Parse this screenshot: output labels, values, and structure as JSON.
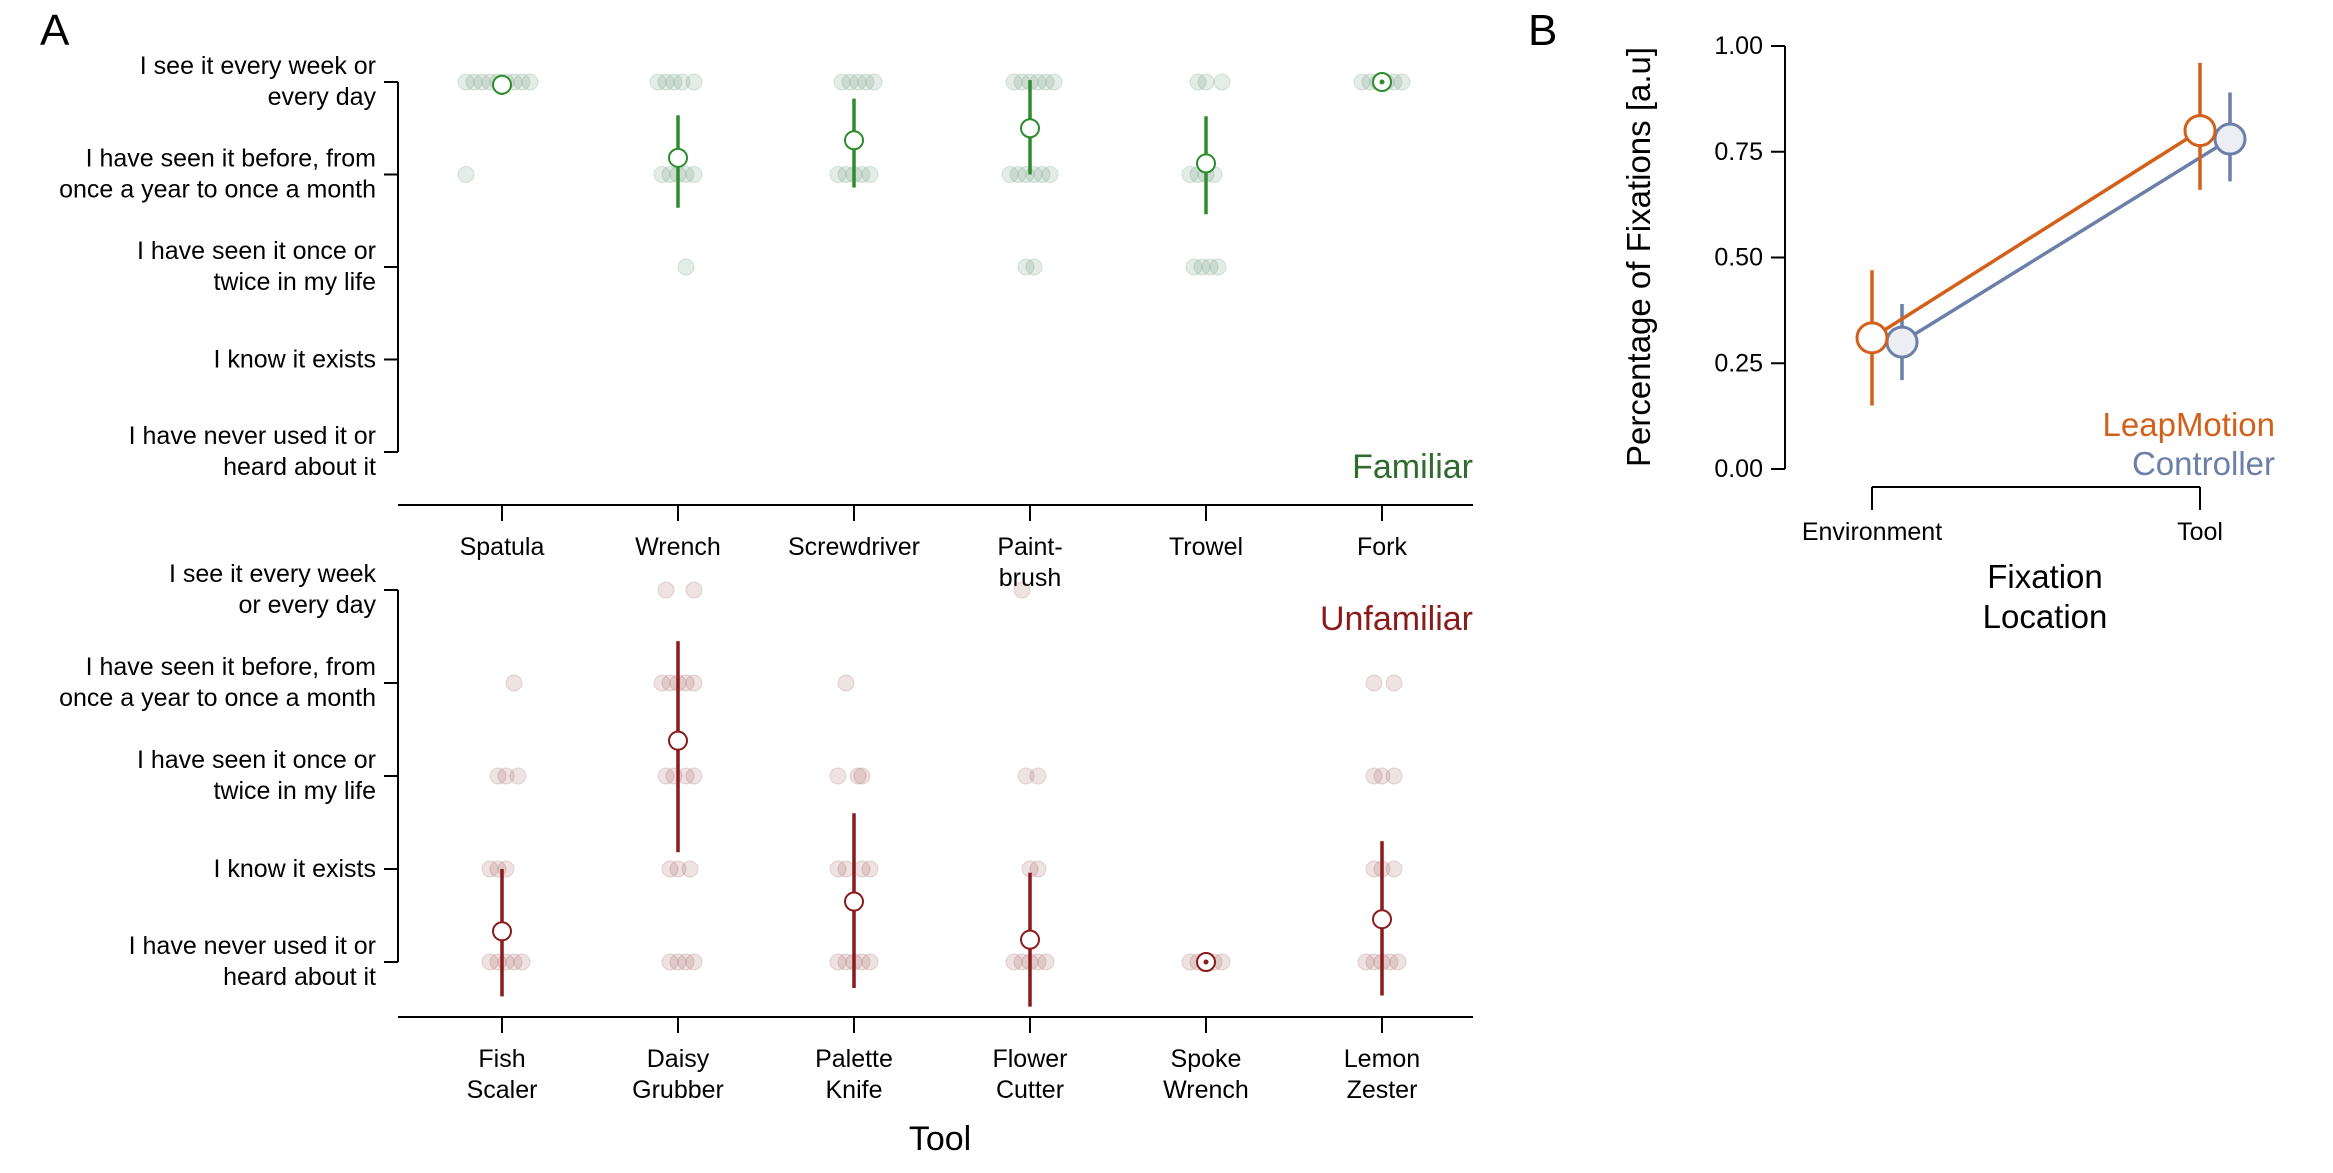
{
  "panel_letters": {
    "a": "A",
    "b": "B"
  },
  "colors": {
    "familiar": "#2e8b2e",
    "familiar_dot": "#3f7a52",
    "familiar_label": "#2f6b2f",
    "unfamiliar": "#8b1a1a",
    "unfamiliar_dot": "#8a3535",
    "leapmotion": "#d2601a",
    "controller": "#6b7fa8",
    "axis": "#000000"
  },
  "chart_data": [
    {
      "id": "familiar",
      "type": "scatter",
      "panel": "A",
      "corner_label": "Familiar",
      "xlabel": "",
      "categories": [
        "Spatula",
        "Wrench",
        "Screwdriver",
        "Paint-\nbrush",
        "Trowel",
        "Fork"
      ],
      "y_levels": [
        "I see it every week or\nevery day",
        "I have seen it before, from\nonce a year to once a month",
        "I have seen it once or\ntwice in my life",
        "I know it exists",
        "I have  never used it or\nheard about it"
      ],
      "ylim": [
        1,
        5
      ],
      "means": [
        4.97,
        4.18,
        4.37,
        4.5,
        4.12,
        5.0
      ],
      "error_low": [
        4.86,
        3.64,
        3.86,
        4.0,
        3.57,
        5.0
      ],
      "error_high": [
        5.05,
        4.64,
        4.82,
        5.02,
        4.63,
        5.0
      ],
      "points": [
        [
          [
            5,
            -0.45
          ],
          [
            5,
            -0.35
          ],
          [
            5,
            -0.25
          ],
          [
            5,
            -0.15
          ],
          [
            5,
            -0.05
          ],
          [
            5,
            0.05
          ],
          [
            5,
            0.15
          ],
          [
            5,
            0.25
          ],
          [
            5,
            0.35
          ],
          [
            4,
            -0.45
          ]
        ],
        [
          [
            5,
            -0.25
          ],
          [
            5,
            -0.15
          ],
          [
            5,
            -0.05
          ],
          [
            5,
            0.05
          ],
          [
            5,
            0.2
          ],
          [
            4,
            -0.2
          ],
          [
            4,
            -0.1
          ],
          [
            4,
            0.0
          ],
          [
            4,
            0.1
          ],
          [
            4,
            0.2
          ],
          [
            3,
            0.1
          ]
        ],
        [
          [
            5,
            -0.15
          ],
          [
            5,
            -0.05
          ],
          [
            5,
            0.05
          ],
          [
            5,
            0.15
          ],
          [
            5,
            0.25
          ],
          [
            4,
            -0.2
          ],
          [
            4,
            -0.1
          ],
          [
            4,
            0.0
          ],
          [
            4,
            0.1
          ],
          [
            4,
            0.2
          ]
        ],
        [
          [
            5,
            -0.2
          ],
          [
            5,
            -0.1
          ],
          [
            5,
            0.0
          ],
          [
            5,
            0.1
          ],
          [
            5,
            0.2
          ],
          [
            5,
            0.3
          ],
          [
            4,
            -0.25
          ],
          [
            4,
            -0.15
          ],
          [
            4,
            -0.05
          ],
          [
            4,
            0.05
          ],
          [
            4,
            0.15
          ],
          [
            4,
            0.25
          ],
          [
            3,
            -0.05
          ],
          [
            3,
            0.05
          ]
        ],
        [
          [
            5,
            -0.1
          ],
          [
            5,
            0.0
          ],
          [
            5,
            0.2
          ],
          [
            4,
            -0.2
          ],
          [
            4,
            -0.1
          ],
          [
            4,
            0.0
          ],
          [
            4,
            0.1
          ],
          [
            3,
            -0.15
          ],
          [
            3,
            -0.05
          ],
          [
            3,
            0.05
          ],
          [
            3,
            0.15
          ]
        ],
        [
          [
            5,
            -0.25
          ],
          [
            5,
            -0.15
          ],
          [
            5,
            -0.05
          ],
          [
            5,
            0.05
          ],
          [
            5,
            0.15
          ],
          [
            5,
            0.25
          ]
        ]
      ]
    },
    {
      "id": "unfamiliar",
      "type": "scatter",
      "panel": "A",
      "corner_label": "Unfamiliar",
      "xlabel": "Tool",
      "categories": [
        "Fish\nScaler",
        "Daisy\nGrubber",
        "Palette\nKnife",
        "Flower\nCutter",
        "Spoke\nWrench",
        "Lemon\nZester"
      ],
      "y_levels": [
        "I see it every week\nor every day",
        "I have seen it before, from\nonce a year to once a month",
        "I have seen it once or\ntwice in my life",
        "I know it exists",
        "I have  never used it or\nheard about it"
      ],
      "ylim": [
        1,
        5
      ],
      "means": [
        1.33,
        3.38,
        1.65,
        1.24,
        1.0,
        1.46
      ],
      "error_low": [
        0.63,
        2.18,
        0.72,
        0.52,
        1.0,
        0.64
      ],
      "error_high": [
        2.0,
        4.45,
        2.6,
        1.96,
        1.0,
        2.3
      ],
      "points": [
        [
          [
            4,
            0.15
          ],
          [
            3,
            -0.05
          ],
          [
            3,
            0.05
          ],
          [
            3,
            0.2
          ],
          [
            2,
            -0.15
          ],
          [
            2,
            -0.05
          ],
          [
            2,
            0.05
          ],
          [
            1,
            -0.15
          ],
          [
            1,
            -0.05
          ],
          [
            1,
            0.05
          ],
          [
            1,
            0.15
          ],
          [
            1,
            0.25
          ]
        ],
        [
          [
            5,
            -0.15
          ],
          [
            5,
            0.2
          ],
          [
            4,
            -0.2
          ],
          [
            4,
            -0.1
          ],
          [
            4,
            0.0
          ],
          [
            4,
            0.1
          ],
          [
            4,
            0.2
          ],
          [
            3,
            -0.15
          ],
          [
            3,
            -0.05
          ],
          [
            3,
            0.1
          ],
          [
            3,
            0.2
          ],
          [
            2,
            -0.1
          ],
          [
            2,
            0.0
          ],
          [
            2,
            0.15
          ],
          [
            1,
            -0.1
          ],
          [
            1,
            0.0
          ],
          [
            1,
            0.1
          ],
          [
            1,
            0.2
          ]
        ],
        [
          [
            4,
            -0.1
          ],
          [
            3,
            -0.2
          ],
          [
            3,
            0.05
          ],
          [
            3,
            0.1
          ],
          [
            2,
            -0.2
          ],
          [
            2,
            -0.1
          ],
          [
            2,
            0.1
          ],
          [
            2,
            0.2
          ],
          [
            1,
            -0.2
          ],
          [
            1,
            -0.1
          ],
          [
            1,
            0.0
          ],
          [
            1,
            0.1
          ],
          [
            1,
            0.2
          ]
        ],
        [
          [
            5,
            -0.1
          ],
          [
            3,
            -0.05
          ],
          [
            3,
            0.1
          ],
          [
            2,
            0.0
          ],
          [
            2,
            0.1
          ],
          [
            1,
            -0.2
          ],
          [
            1,
            -0.1
          ],
          [
            1,
            0.0
          ],
          [
            1,
            0.1
          ],
          [
            1,
            0.2
          ]
        ],
        [
          [
            1,
            -0.2
          ],
          [
            1,
            -0.1
          ],
          [
            1,
            0.0
          ],
          [
            1,
            0.1
          ],
          [
            1,
            0.2
          ]
        ],
        [
          [
            4,
            -0.1
          ],
          [
            4,
            0.15
          ],
          [
            3,
            -0.1
          ],
          [
            3,
            0.0
          ],
          [
            3,
            0.15
          ],
          [
            2,
            -0.1
          ],
          [
            2,
            0.0
          ],
          [
            2,
            0.15
          ],
          [
            1,
            -0.2
          ],
          [
            1,
            -0.1
          ],
          [
            1,
            0.0
          ],
          [
            1,
            0.1
          ],
          [
            1,
            0.2
          ]
        ]
      ]
    },
    {
      "id": "fixations",
      "type": "line",
      "panel": "B",
      "title": "",
      "xlabel": "Fixation\nLocation",
      "ylabel": "Percentage of Fixations [a.u]",
      "categories": [
        "Environment",
        "Tool"
      ],
      "ylim": [
        0,
        1
      ],
      "yticks": [
        "0.00",
        "0.25",
        "0.50",
        "0.75",
        "1.00"
      ],
      "legend_position": "bottom-right",
      "series": [
        {
          "name": "LeapMotion",
          "values": [
            0.31,
            0.8
          ],
          "error_low": [
            0.15,
            0.66
          ],
          "error_high": [
            0.47,
            0.96
          ]
        },
        {
          "name": "Controller",
          "values": [
            0.3,
            0.78
          ],
          "error_low": [
            0.21,
            0.68
          ],
          "error_high": [
            0.39,
            0.89
          ]
        }
      ]
    }
  ]
}
